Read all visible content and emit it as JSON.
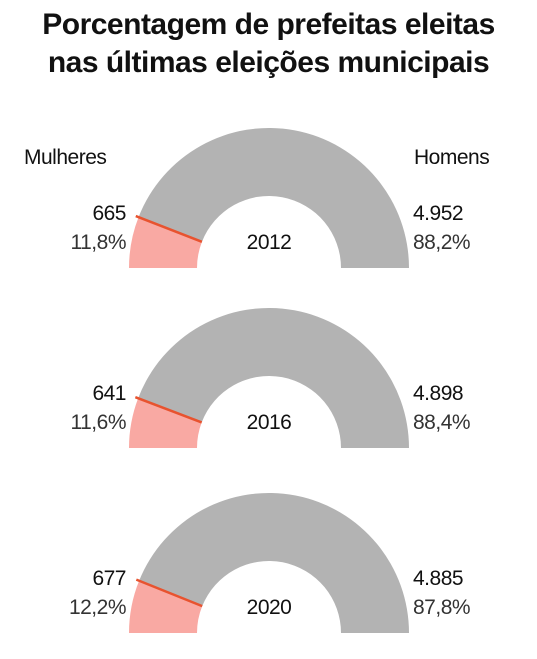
{
  "title": {
    "line1": "Porcentagem de prefeitas eleitas",
    "line2": "nas últimas eleições municipais"
  },
  "legend": {
    "left": "Mulheres",
    "right": "Homens"
  },
  "colors": {
    "women": "#f9a9a3",
    "men": "#b3b3b3",
    "divider": "#e8532f"
  },
  "chart_data": {
    "type": "pie",
    "title": "Porcentagem de prefeitas eleitas nas últimas eleições municipais",
    "categories": [
      "Mulheres",
      "Homens"
    ],
    "series": [
      {
        "year": "2012",
        "values": [
          665,
          4952
        ],
        "values_display": [
          "665",
          "4.952"
        ],
        "percent": [
          11.8,
          88.2
        ],
        "percent_display": [
          "11,8%",
          "88,2%"
        ]
      },
      {
        "year": "2016",
        "values": [
          641,
          4898
        ],
        "values_display": [
          "641",
          "4.898"
        ],
        "percent": [
          11.6,
          88.4
        ],
        "percent_display": [
          "11,6%",
          "88,4%"
        ]
      },
      {
        "year": "2020",
        "values": [
          677,
          4885
        ],
        "values_display": [
          "677",
          "4.885"
        ],
        "percent": [
          12.2,
          87.8
        ],
        "percent_display": [
          "12,2%",
          "87,8%"
        ]
      }
    ]
  }
}
